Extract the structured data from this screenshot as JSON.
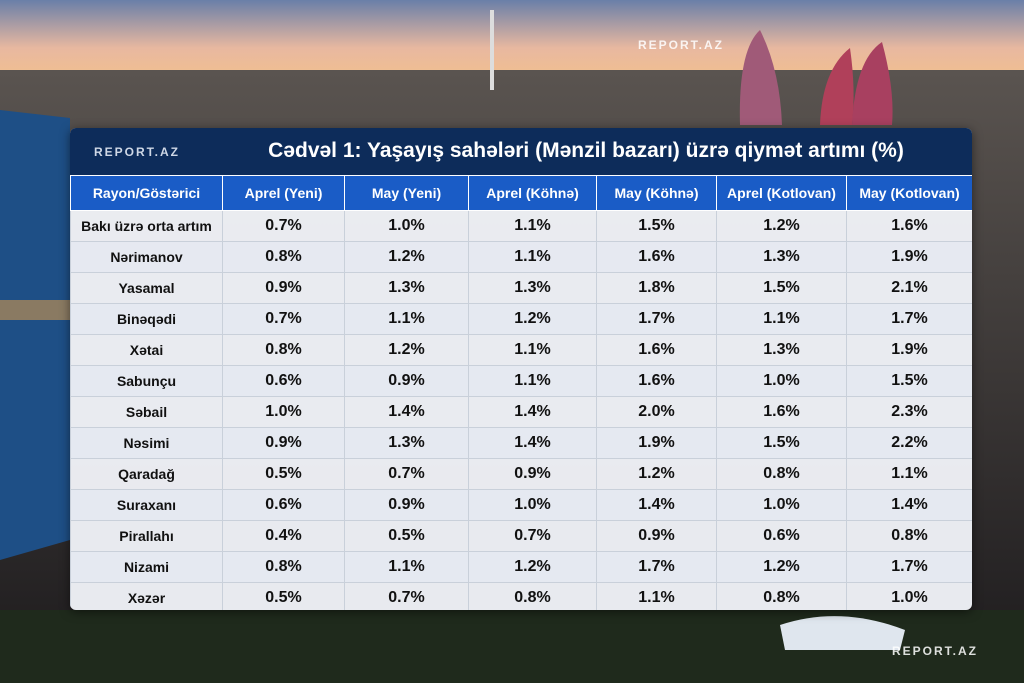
{
  "watermarks": [
    "REPORT.AZ",
    "REPORT.AZ"
  ],
  "table": {
    "logo": "REPORT.AZ",
    "title": "Cədvəl 1: Yaşayış sahələri (Mənzil bazarı) üzrə qiymət artımı (%)",
    "headers": [
      "Rayon/Göstərici",
      "Aprel (Yeni)",
      "May (Yeni)",
      "Aprel (Köhnə)",
      "May (Köhnə)",
      "Aprel (Kotlovan)",
      "May (Kotlovan)"
    ],
    "rows": [
      [
        "Bakı üzrə orta artım",
        "0.7%",
        "1.0%",
        "1.1%",
        "1.5%",
        "1.2%",
        "1.6%"
      ],
      [
        "Nərimanov",
        "0.8%",
        "1.2%",
        "1.1%",
        "1.6%",
        "1.3%",
        "1.9%"
      ],
      [
        "Yasamal",
        "0.9%",
        "1.3%",
        "1.3%",
        "1.8%",
        "1.5%",
        "2.1%"
      ],
      [
        "Binəqədi",
        "0.7%",
        "1.1%",
        "1.2%",
        "1.7%",
        "1.1%",
        "1.7%"
      ],
      [
        "Xətai",
        "0.8%",
        "1.2%",
        "1.1%",
        "1.6%",
        "1.3%",
        "1.9%"
      ],
      [
        "Sabunçu",
        "0.6%",
        "0.9%",
        "1.1%",
        "1.6%",
        "1.0%",
        "1.5%"
      ],
      [
        "Səbail",
        "1.0%",
        "1.4%",
        "1.4%",
        "2.0%",
        "1.6%",
        "2.3%"
      ],
      [
        "Nəsimi",
        "0.9%",
        "1.3%",
        "1.4%",
        "1.9%",
        "1.5%",
        "2.2%"
      ],
      [
        "Qaradağ",
        "0.5%",
        "0.7%",
        "0.9%",
        "1.2%",
        "0.8%",
        "1.1%"
      ],
      [
        "Suraxanı",
        "0.6%",
        "0.9%",
        "1.0%",
        "1.4%",
        "1.0%",
        "1.4%"
      ],
      [
        "Pirallahı",
        "0.4%",
        "0.5%",
        "0.7%",
        "0.9%",
        "0.6%",
        "0.8%"
      ],
      [
        "Nizami",
        "0.8%",
        "1.1%",
        "1.2%",
        "1.7%",
        "1.2%",
        "1.7%"
      ],
      [
        "Xəzər",
        "0.5%",
        "0.7%",
        "0.8%",
        "1.1%",
        "0.8%",
        "1.0%"
      ]
    ]
  }
}
